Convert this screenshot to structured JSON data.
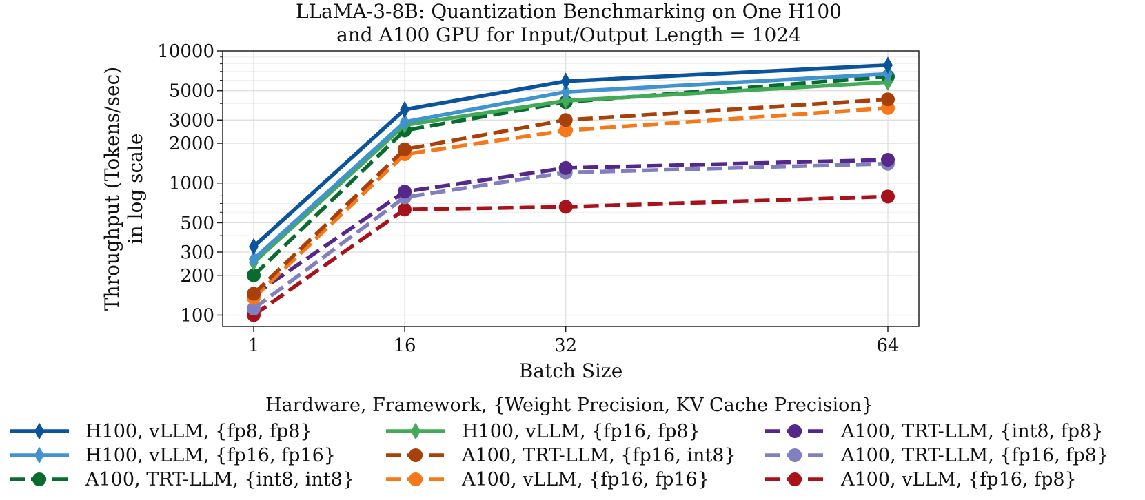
{
  "chart_data": {
    "type": "line",
    "title_lines": [
      "LLaMA-3-8B: Quantization Benchmarking on One H100",
      "and A100 GPU for Input/Output Length = 1024"
    ],
    "xlabel": "Batch Size",
    "ylabel_lines": [
      "Throughput (Tokens/sec)",
      "in log scale"
    ],
    "x": [
      1,
      16,
      32,
      64
    ],
    "x_tick_labels": [
      "1",
      "16",
      "32",
      "64"
    ],
    "y_scale": "log",
    "ylim": [
      82,
      10000
    ],
    "y_ticks": [
      100,
      200,
      300,
      500,
      1000,
      2000,
      3000,
      5000,
      10000
    ],
    "y_tick_labels": [
      "100",
      "200",
      "300",
      "500",
      "1000",
      "2000",
      "3000",
      "5000",
      "10000"
    ],
    "grid": true,
    "legend_title": "Hardware, Framework, {Weight Precision, KV Cache Precision}",
    "legend_placement": "bottom",
    "series": [
      {
        "name": "H100, vLLM, {fp8, fp8}",
        "color": "#0b539a",
        "style": "solid",
        "marker": "diamond",
        "values": [
          330,
          3600,
          5900,
          7800
        ]
      },
      {
        "name": "H100, vLLM, {fp16, fp16}",
        "color": "#4193cf",
        "style": "solid",
        "marker": "diamond",
        "values": [
          265,
          2900,
          4900,
          6700
        ]
      },
      {
        "name": "A100, TRT-LLM, {int8, int8}",
        "color": "#0a6b2f",
        "style": "dashed",
        "marker": "circle",
        "values": [
          200,
          2500,
          4100,
          6400
        ]
      },
      {
        "name": "H100, vLLM, {fp16, fp8}",
        "color": "#43aa58",
        "style": "solid",
        "marker": "diamond",
        "values": [
          250,
          2750,
          4200,
          5800
        ]
      },
      {
        "name": "A100, TRT-LLM, {fp16, int8}",
        "color": "#a8400a",
        "style": "dashed",
        "marker": "circle",
        "values": [
          145,
          1800,
          3000,
          4300
        ]
      },
      {
        "name": "A100, vLLM, {fp16, fp16}",
        "color": "#f5791b",
        "style": "dashed",
        "marker": "circle",
        "values": [
          135,
          1650,
          2500,
          3700
        ]
      },
      {
        "name": "A100, TRT-LLM, {int8, fp8}",
        "color": "#542789",
        "style": "dashed",
        "marker": "circle",
        "values": [
          142,
          860,
          1300,
          1500
        ]
      },
      {
        "name": "A100, TRT-LLM, {fp16, fp8}",
        "color": "#8080c0",
        "style": "dashed",
        "marker": "circle",
        "values": [
          112,
          780,
          1200,
          1400
        ]
      },
      {
        "name": "A100, vLLM, {fp16, fp8}",
        "color": "#a8121a",
        "style": "dashed",
        "marker": "circle",
        "values": [
          100,
          630,
          660,
          790
        ]
      }
    ]
  }
}
